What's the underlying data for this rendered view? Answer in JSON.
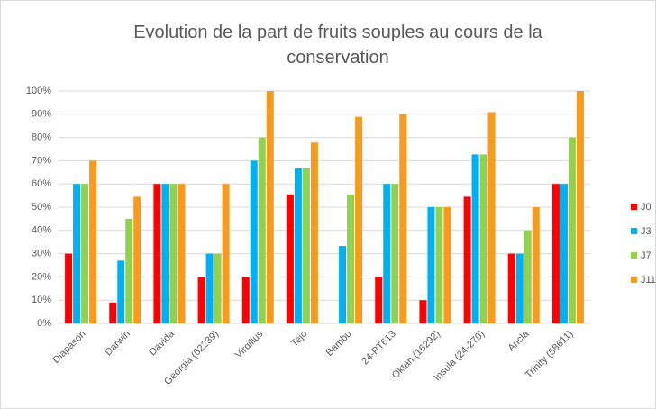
{
  "chart_data": {
    "type": "bar",
    "title": "Evolution de la part de fruits souples au cours de la conservation",
    "categories": [
      "Diapason",
      "Darwin",
      "Davida",
      "Georgia (62239)",
      "Virgilius",
      "Tejo",
      "Bambu",
      "24-PT613",
      "Oktan (16292)",
      "Insula (24-270)",
      "Ancla",
      "Trinity (58611)"
    ],
    "series": [
      {
        "name": "J0",
        "color": "#ff0000",
        "values": [
          30,
          9,
          60,
          20,
          20,
          55.5,
          0,
          20,
          10,
          54.5,
          30,
          60
        ]
      },
      {
        "name": "J3",
        "color": "#00b0f0",
        "values": [
          60,
          27,
          60,
          30,
          70,
          66.7,
          33.3,
          60,
          50,
          72.7,
          30,
          60
        ]
      },
      {
        "name": "J7",
        "color": "#92d050",
        "values": [
          60,
          45,
          60,
          30,
          80,
          66.7,
          55.5,
          60,
          50,
          72.7,
          40,
          80
        ]
      },
      {
        "name": "J11",
        "color": "#f79a1e",
        "values": [
          70,
          54.5,
          60,
          60,
          100,
          77.8,
          88.9,
          90,
          50,
          90.9,
          50,
          100
        ]
      }
    ],
    "ylim": [
      0,
      100
    ],
    "yticks": [
      {
        "value": 0,
        "label": "0%"
      },
      {
        "value": 10,
        "label": "10%"
      },
      {
        "value": 20,
        "label": "20%"
      },
      {
        "value": 30,
        "label": "30%"
      },
      {
        "value": 40,
        "label": "40%"
      },
      {
        "value": 50,
        "label": "50%"
      },
      {
        "value": 60,
        "label": "60%"
      },
      {
        "value": 70,
        "label": "70%"
      },
      {
        "value": 80,
        "label": "80%"
      },
      {
        "value": 90,
        "label": "90%"
      },
      {
        "value": 100,
        "label": "100%"
      }
    ],
    "grid": true,
    "legend": "right"
  }
}
